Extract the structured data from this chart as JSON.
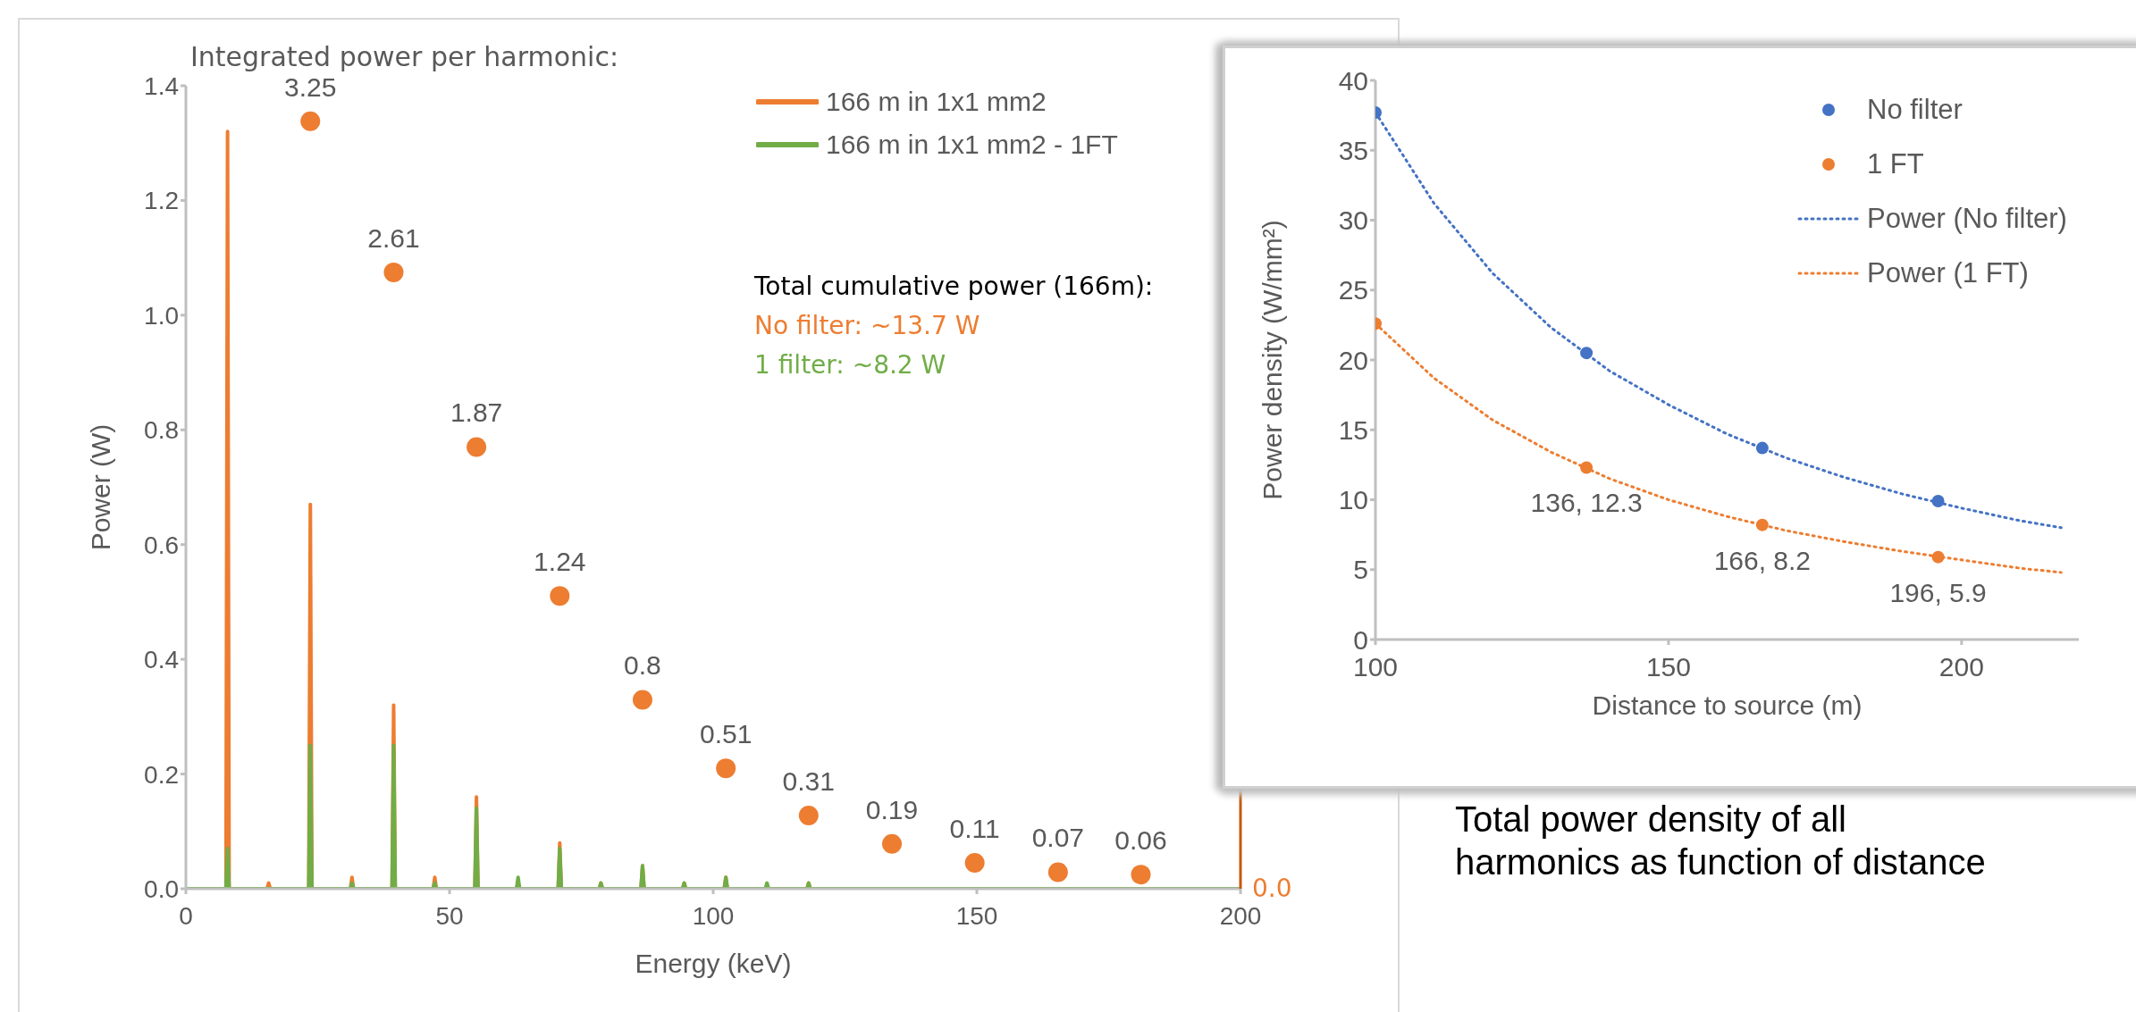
{
  "chart_data": [
    {
      "type": "line",
      "xlabel": "Energy (keV)",
      "ylabel": "Power (W)",
      "xlim": [
        0,
        200
      ],
      "xticks": [
        0,
        50,
        100,
        150,
        200
      ],
      "ylim": [
        0,
        1.4
      ],
      "yticks": [
        {
          "value": 0,
          "label": "0.0"
        },
        {
          "value": 0.2,
          "label": "0.2"
        },
        {
          "value": 0.4,
          "label": "0.4"
        },
        {
          "value": 0.6,
          "label": "0.6"
        },
        {
          "value": 0.8,
          "label": "0.8"
        },
        {
          "value": 1.0,
          "label": "1.0"
        },
        {
          "value": 1.2,
          "label": "1.2"
        },
        {
          "value": 1.4,
          "label": "1.4"
        }
      ],
      "legend": "top right",
      "marker": "none",
      "line_style": "solid",
      "annotations": [
        "Integrated power per harmonic:",
        "Total cumulative power (166m):",
        "No filter: ~13.7 W",
        "1 filter: ~8.2 W",
        "0.0"
      ],
      "series": [
        {
          "name": "166 m in 1x1 mm2",
          "color": "#ed7d31",
          "x": [
            0,
            7.6,
            7.9,
            8.2,
            15.4,
            15.7,
            16.0,
            23.3,
            23.6,
            23.9,
            31.2,
            31.5,
            31.8,
            39.1,
            39.4,
            39.7,
            46.9,
            47.2,
            47.5,
            54.8,
            55.1,
            55.4,
            62.7,
            63.0,
            63.3,
            70.6,
            70.9,
            71.2,
            78.4,
            78.7,
            79.0,
            86.3,
            86.6,
            86.9,
            94.2,
            94.5,
            94.8,
            102.1,
            102.4,
            102.7,
            117.8,
            118.1,
            118.4,
            200
          ],
          "values": [
            0,
            0,
            1.32,
            0,
            0,
            0.01,
            0,
            0,
            0.67,
            0,
            0,
            0.02,
            0,
            0,
            0.32,
            0,
            0,
            0.02,
            0,
            0,
            0.16,
            0,
            0,
            0.01,
            0,
            0,
            0.08,
            0,
            0,
            0.01,
            0,
            0,
            0.04,
            0,
            0,
            0.01,
            0,
            0,
            0.02,
            0,
            0,
            0.01,
            0,
            0
          ]
        },
        {
          "name": "166 m in 1x1 mm2 - 1FT",
          "color": "#70ad47",
          "x": [
            0,
            7.6,
            7.9,
            8.2,
            23.3,
            23.6,
            23.9,
            31.2,
            31.5,
            31.8,
            39.1,
            39.4,
            39.7,
            46.9,
            47.2,
            47.5,
            54.8,
            55.1,
            55.4,
            62.7,
            63.0,
            63.3,
            70.6,
            70.9,
            71.2,
            78.4,
            78.7,
            79.0,
            86.3,
            86.6,
            86.9,
            94.2,
            94.5,
            94.8,
            102.1,
            102.4,
            102.7,
            109.9,
            110.2,
            110.5,
            117.8,
            118.1,
            118.4,
            200
          ],
          "values": [
            0,
            0,
            0.07,
            0,
            0,
            0.25,
            0,
            0,
            0.01,
            0,
            0,
            0.25,
            0,
            0,
            0.01,
            0,
            0,
            0.14,
            0,
            0,
            0.02,
            0,
            0,
            0.07,
            0,
            0,
            0.01,
            0,
            0,
            0.04,
            0,
            0,
            0.01,
            0,
            0,
            0.02,
            0,
            0,
            0.01,
            0,
            0,
            0.01,
            0,
            0
          ]
        },
        {
          "type": "scatter",
          "axis": "y2",
          "marker": "circle",
          "color": "#ed7d31",
          "x": [
            23.6,
            39.4,
            55.1,
            70.9,
            86.6,
            102.4,
            118.1,
            133.9,
            149.6,
            165.4,
            181.1
          ],
          "values": [
            3.25,
            2.61,
            1.87,
            1.24,
            0.8,
            0.51,
            0.31,
            0.19,
            0.11,
            0.07,
            0.06
          ],
          "value_labels": [
            "3.25",
            "2.61",
            "1.87",
            "1.24",
            "0.8",
            "0.51",
            "0.31",
            "0.19",
            "0.11",
            "0.07",
            "0.06"
          ]
        }
      ]
    },
    {
      "type": "scatter",
      "xlabel": "Distance to source (m)",
      "ylabel": "Power density (W/mm²)",
      "xlim": [
        100,
        220
      ],
      "xticks": [
        100,
        150,
        200
      ],
      "ylim": [
        0,
        40
      ],
      "yticks": [
        0,
        5,
        10,
        15,
        20,
        25,
        30,
        35,
        40
      ],
      "legend": "top right",
      "marker": "circle",
      "annotations": [
        "Total power density of all harmonics as function of distance"
      ],
      "series": [
        {
          "name": "No filter",
          "color": "#4472c4",
          "x": [
            100,
            136,
            166,
            196
          ],
          "values": [
            37.7,
            20.5,
            13.7,
            9.9
          ]
        },
        {
          "name": "1 FT",
          "color": "#ed7d31",
          "x": [
            100,
            136,
            166,
            196
          ],
          "values": [
            22.6,
            12.3,
            8.2,
            5.9
          ],
          "value_labels": [
            null,
            "136, 12.3",
            "166, 8.2",
            "196, 5.9"
          ]
        },
        {
          "name": "Power (No filter)",
          "type": "line",
          "marker": "none",
          "line_style": "dotted",
          "color": "#4472c4",
          "x": [
            100,
            110,
            120,
            130,
            140,
            150,
            160,
            170,
            180,
            190,
            200,
            210,
            217
          ],
          "values": [
            37.7,
            31.2,
            26.2,
            22.3,
            19.2,
            16.8,
            14.7,
            13.0,
            11.6,
            10.4,
            9.4,
            8.5,
            8.0
          ]
        },
        {
          "name": "Power (1 FT)",
          "type": "line",
          "marker": "none",
          "line_style": "dotted",
          "color": "#ed7d31",
          "x": [
            100,
            110,
            120,
            130,
            140,
            150,
            160,
            170,
            180,
            190,
            200,
            210,
            217
          ],
          "values": [
            22.6,
            18.7,
            15.7,
            13.4,
            11.5,
            10.0,
            8.8,
            7.8,
            7.0,
            6.3,
            5.7,
            5.1,
            4.8
          ]
        }
      ]
    }
  ]
}
